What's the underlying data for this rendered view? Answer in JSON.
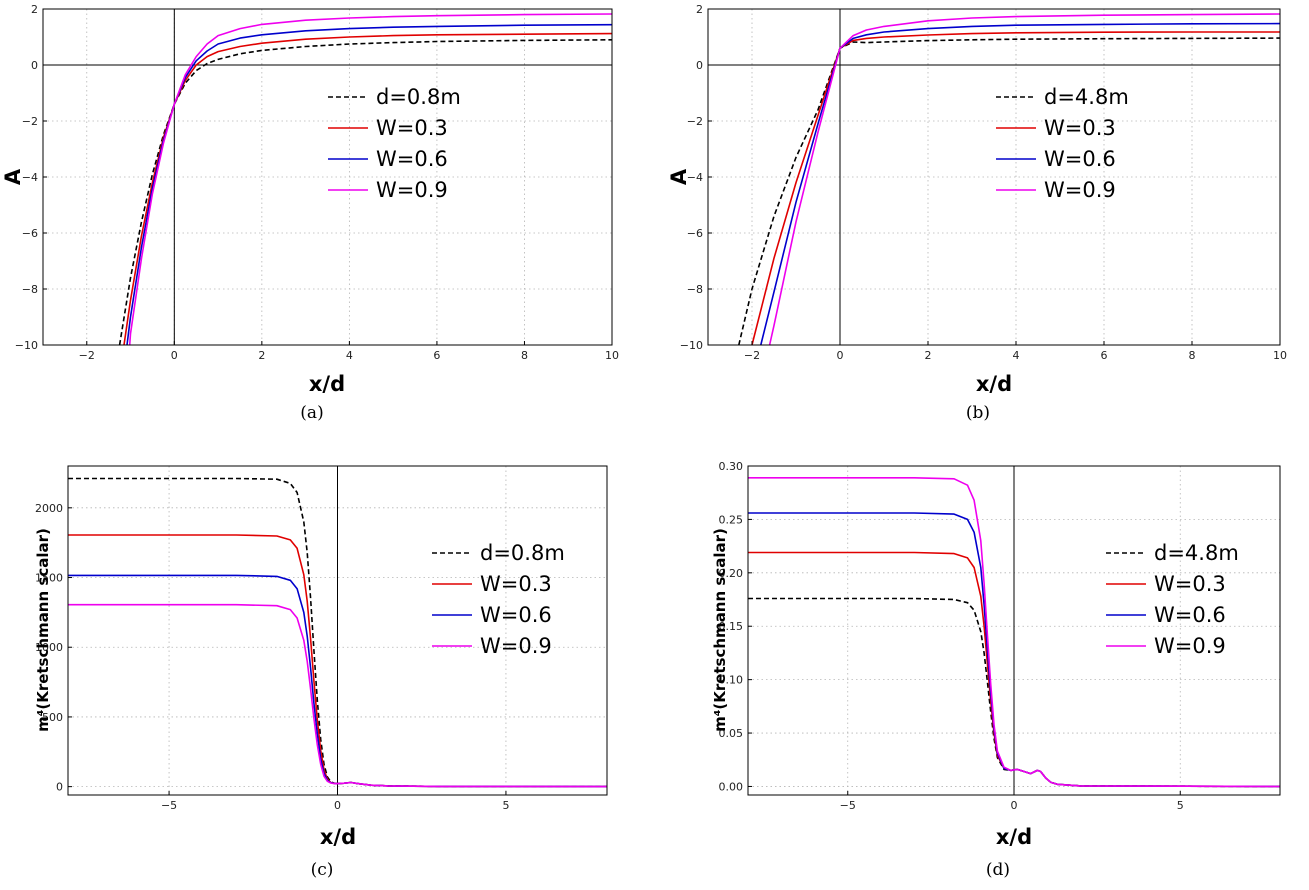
{
  "chart_data": [
    {
      "panel": "a",
      "caption": "(a)",
      "type": "line",
      "xlabel": "x/d",
      "ylabel": "A",
      "xlim": [
        -3,
        10
      ],
      "ylim": [
        -10,
        2
      ],
      "xticks": [
        -2,
        0,
        2,
        4,
        6,
        8,
        10
      ],
      "yticks": [
        -10,
        -8,
        -6,
        -4,
        -2,
        0,
        2
      ],
      "grid": true,
      "legend_placement": "center-right",
      "series": [
        {
          "name": "d=0.8m",
          "color": "#000000",
          "dash": true,
          "x": [
            -1.25,
            -1.0,
            -0.75,
            -0.5,
            -0.25,
            0,
            0.25,
            0.5,
            0.75,
            1.0,
            1.5,
            2,
            3,
            4,
            5,
            6,
            8,
            10
          ],
          "y": [
            -10,
            -7.6,
            -5.6,
            -3.9,
            -2.5,
            -1.4,
            -0.65,
            -0.2,
            0.05,
            0.2,
            0.4,
            0.52,
            0.66,
            0.75,
            0.8,
            0.84,
            0.88,
            0.9
          ]
        },
        {
          "name": "W=0.3",
          "color": "#e00000",
          "dash": false,
          "x": [
            -1.15,
            -1.0,
            -0.75,
            -0.5,
            -0.25,
            0,
            0.25,
            0.5,
            0.75,
            1.0,
            1.5,
            2,
            3,
            4,
            5,
            6,
            8,
            10
          ],
          "y": [
            -10,
            -8.4,
            -6.1,
            -4.2,
            -2.6,
            -1.4,
            -0.55,
            0.0,
            0.3,
            0.48,
            0.66,
            0.78,
            0.92,
            1.0,
            1.05,
            1.08,
            1.1,
            1.12
          ]
        },
        {
          "name": "W=0.6",
          "color": "#0000cc",
          "dash": false,
          "x": [
            -1.08,
            -1.0,
            -0.75,
            -0.5,
            -0.25,
            0,
            0.25,
            0.5,
            0.75,
            1.0,
            1.5,
            2,
            3,
            4,
            5,
            6,
            8,
            10
          ],
          "y": [
            -10,
            -9.0,
            -6.5,
            -4.4,
            -2.7,
            -1.4,
            -0.45,
            0.15,
            0.5,
            0.75,
            0.96,
            1.08,
            1.22,
            1.3,
            1.35,
            1.38,
            1.42,
            1.44
          ]
        },
        {
          "name": "W=0.9",
          "color": "#ee00ee",
          "dash": false,
          "x": [
            -1.02,
            -1.0,
            -0.75,
            -0.5,
            -0.25,
            0,
            0.25,
            0.5,
            0.75,
            1.0,
            1.5,
            2,
            3,
            4,
            5,
            6,
            8,
            10
          ],
          "y": [
            -10,
            -9.6,
            -6.9,
            -4.6,
            -2.8,
            -1.4,
            -0.35,
            0.3,
            0.75,
            1.05,
            1.3,
            1.45,
            1.6,
            1.68,
            1.73,
            1.76,
            1.8,
            1.82
          ]
        }
      ]
    },
    {
      "panel": "b",
      "caption": "(b)",
      "type": "line",
      "xlabel": "x/d",
      "ylabel": "A",
      "xlim": [
        -3,
        10
      ],
      "ylim": [
        -10,
        2
      ],
      "xticks": [
        -2,
        0,
        2,
        4,
        6,
        8,
        10
      ],
      "yticks": [
        -10,
        -8,
        -6,
        -4,
        -2,
        0,
        2
      ],
      "grid": true,
      "legend_placement": "center-right",
      "series": [
        {
          "name": "d=4.8m",
          "color": "#000000",
          "dash": true,
          "x": [
            -2.3,
            -2.0,
            -1.5,
            -1.0,
            -0.5,
            0,
            0.3,
            0.6,
            1.0,
            2,
            3,
            4,
            6,
            8,
            10
          ],
          "y": [
            -10,
            -8.0,
            -5.4,
            -3.3,
            -1.6,
            0.6,
            0.82,
            0.8,
            0.82,
            0.87,
            0.9,
            0.92,
            0.94,
            0.95,
            0.96
          ]
        },
        {
          "name": "W=0.3",
          "color": "#e00000",
          "dash": false,
          "x": [
            -2.0,
            -1.5,
            -1.0,
            -0.5,
            0,
            0.3,
            0.6,
            1.0,
            2,
            3,
            4,
            6,
            8,
            10
          ],
          "y": [
            -10,
            -6.9,
            -4.2,
            -1.8,
            0.6,
            0.88,
            0.95,
            1.0,
            1.07,
            1.12,
            1.15,
            1.17,
            1.18,
            1.18
          ]
        },
        {
          "name": "W=0.6",
          "color": "#0000cc",
          "dash": false,
          "x": [
            -1.8,
            -1.5,
            -1.0,
            -0.5,
            0,
            0.3,
            0.6,
            1.0,
            2,
            3,
            4,
            6,
            8,
            10
          ],
          "y": [
            -10,
            -8.1,
            -4.9,
            -2.1,
            0.6,
            0.95,
            1.08,
            1.18,
            1.3,
            1.38,
            1.42,
            1.45,
            1.47,
            1.48
          ]
        },
        {
          "name": "W=0.9",
          "color": "#ee00ee",
          "dash": false,
          "x": [
            -1.6,
            -1.5,
            -1.0,
            -0.5,
            0,
            0.3,
            0.6,
            1.0,
            2,
            3,
            4,
            6,
            8,
            10
          ],
          "y": [
            -10,
            -9.3,
            -5.6,
            -2.4,
            0.6,
            1.05,
            1.25,
            1.38,
            1.58,
            1.68,
            1.73,
            1.78,
            1.8,
            1.82
          ]
        }
      ]
    },
    {
      "panel": "c",
      "caption": "(c)",
      "type": "line",
      "xlabel": "x/d",
      "ylabel": "m⁴(Kretschmann scalar)",
      "xlim": [
        -8,
        8
      ],
      "ylim": [
        -60,
        2300
      ],
      "xticks": [
        -5,
        0,
        5
      ],
      "yticks": [
        0,
        500,
        1000,
        1500,
        2000
      ],
      "grid": true,
      "legend_placement": "center-right",
      "series": [
        {
          "name": "d=0.8m",
          "color": "#000000",
          "dash": true,
          "x": [
            -8,
            -3,
            -1.8,
            -1.4,
            -1.2,
            -1.0,
            -0.9,
            -0.8,
            -0.7,
            -0.6,
            -0.5,
            -0.4,
            -0.3,
            -0.2,
            -0.1,
            0,
            0.2,
            0.4,
            0.6,
            1.0,
            1.5,
            3,
            8
          ],
          "y": [
            2210,
            2210,
            2205,
            2175,
            2110,
            1900,
            1680,
            1350,
            980,
            620,
            340,
            160,
            70,
            35,
            25,
            22,
            25,
            30,
            22,
            10,
            5,
            2,
            0
          ]
        },
        {
          "name": "W=0.3",
          "color": "#e00000",
          "dash": false,
          "x": [
            -8,
            -3,
            -1.8,
            -1.4,
            -1.2,
            -1.0,
            -0.9,
            -0.8,
            -0.7,
            -0.6,
            -0.5,
            -0.4,
            -0.3,
            -0.2,
            -0.1,
            0,
            0.2,
            0.4,
            0.6,
            1.0,
            1.5,
            3,
            8
          ],
          "y": [
            1805,
            1805,
            1798,
            1770,
            1710,
            1520,
            1330,
            1060,
            760,
            480,
            260,
            120,
            55,
            30,
            24,
            22,
            25,
            30,
            22,
            10,
            5,
            2,
            0
          ]
        },
        {
          "name": "W=0.6",
          "color": "#0000cc",
          "dash": false,
          "x": [
            -8,
            -3,
            -1.8,
            -1.4,
            -1.2,
            -1.0,
            -0.9,
            -0.8,
            -0.7,
            -0.6,
            -0.5,
            -0.4,
            -0.3,
            -0.2,
            -0.1,
            0,
            0.2,
            0.4,
            0.6,
            1.0,
            1.5,
            3,
            8
          ],
          "y": [
            1515,
            1515,
            1508,
            1480,
            1420,
            1250,
            1080,
            850,
            600,
            380,
            200,
            95,
            45,
            28,
            23,
            22,
            25,
            30,
            22,
            10,
            5,
            2,
            0
          ]
        },
        {
          "name": "W=0.9",
          "color": "#ee00ee",
          "dash": false,
          "x": [
            -8,
            -3,
            -1.8,
            -1.4,
            -1.2,
            -1.0,
            -0.9,
            -0.8,
            -0.7,
            -0.6,
            -0.5,
            -0.4,
            -0.3,
            -0.2,
            -0.1,
            0,
            0.2,
            0.4,
            0.6,
            1.0,
            1.5,
            3,
            8
          ],
          "y": [
            1305,
            1305,
            1298,
            1270,
            1210,
            1050,
            900,
            700,
            490,
            300,
            160,
            75,
            38,
            26,
            22,
            22,
            25,
            30,
            22,
            10,
            5,
            2,
            0
          ]
        }
      ]
    },
    {
      "panel": "d",
      "caption": "(d)",
      "type": "line",
      "xlabel": "x/d",
      "ylabel": "m⁴(Kretschmann scalar)",
      "xlim": [
        -8,
        8
      ],
      "ylim": [
        -0.008,
        0.3
      ],
      "xticks": [
        -5,
        0,
        5
      ],
      "yticks": [
        0.0,
        0.05,
        0.1,
        0.15,
        0.2,
        0.25,
        0.3
      ],
      "yticklabels": [
        "0.00",
        "0.05",
        "0.10",
        "0.15",
        "0.20",
        "0.25",
        "0.30"
      ],
      "grid": true,
      "legend_placement": "center-right",
      "series": [
        {
          "name": "d=4.8m",
          "color": "#000000",
          "dash": true,
          "x": [
            -8,
            -3,
            -1.8,
            -1.4,
            -1.2,
            -1.0,
            -0.9,
            -0.8,
            -0.7,
            -0.6,
            -0.5,
            -0.3,
            -0.1,
            0.1,
            0.3,
            0.5,
            0.7,
            0.8,
            0.95,
            1.1,
            1.3,
            2,
            8
          ],
          "y": [
            0.176,
            0.176,
            0.175,
            0.172,
            0.165,
            0.145,
            0.125,
            0.098,
            0.07,
            0.045,
            0.027,
            0.016,
            0.015,
            0.016,
            0.014,
            0.012,
            0.015,
            0.014,
            0.008,
            0.004,
            0.002,
            0.0005,
            0.0
          ]
        },
        {
          "name": "W=0.3",
          "color": "#e00000",
          "dash": false,
          "x": [
            -8,
            -3,
            -1.8,
            -1.4,
            -1.2,
            -1.0,
            -0.9,
            -0.8,
            -0.7,
            -0.6,
            -0.5,
            -0.3,
            -0.1,
            0.1,
            0.3,
            0.5,
            0.7,
            0.8,
            0.95,
            1.1,
            1.3,
            2,
            8
          ],
          "y": [
            0.219,
            0.219,
            0.218,
            0.214,
            0.205,
            0.178,
            0.15,
            0.115,
            0.08,
            0.05,
            0.029,
            0.017,
            0.015,
            0.016,
            0.014,
            0.012,
            0.015,
            0.014,
            0.008,
            0.004,
            0.002,
            0.0005,
            0.0
          ]
        },
        {
          "name": "W=0.6",
          "color": "#0000cc",
          "dash": false,
          "x": [
            -8,
            -3,
            -1.8,
            -1.4,
            -1.2,
            -1.0,
            -0.9,
            -0.8,
            -0.7,
            -0.6,
            -0.5,
            -0.3,
            -0.1,
            0.1,
            0.3,
            0.5,
            0.7,
            0.8,
            0.95,
            1.1,
            1.3,
            2,
            8
          ],
          "y": [
            0.256,
            0.256,
            0.255,
            0.25,
            0.238,
            0.205,
            0.17,
            0.128,
            0.088,
            0.054,
            0.031,
            0.017,
            0.015,
            0.016,
            0.014,
            0.012,
            0.015,
            0.014,
            0.008,
            0.004,
            0.002,
            0.0005,
            0.0
          ]
        },
        {
          "name": "W=0.9",
          "color": "#ee00ee",
          "dash": false,
          "x": [
            -8,
            -3,
            -1.8,
            -1.4,
            -1.2,
            -1.0,
            -0.9,
            -0.8,
            -0.7,
            -0.6,
            -0.5,
            -0.3,
            -0.1,
            0.1,
            0.3,
            0.5,
            0.7,
            0.8,
            0.95,
            1.1,
            1.3,
            2,
            8
          ],
          "y": [
            0.289,
            0.289,
            0.288,
            0.282,
            0.268,
            0.23,
            0.19,
            0.142,
            0.096,
            0.058,
            0.033,
            0.018,
            0.015,
            0.016,
            0.014,
            0.012,
            0.015,
            0.014,
            0.008,
            0.004,
            0.002,
            0.0005,
            0.0
          ]
        }
      ]
    }
  ]
}
